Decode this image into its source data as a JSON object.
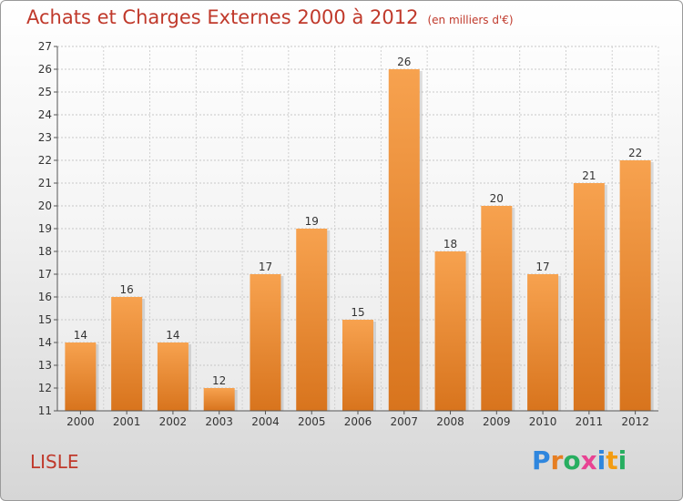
{
  "header": {
    "title": "Achats et Charges Externes 2000 à 2012",
    "subtitle": "(en milliers d'€)"
  },
  "footer": {
    "city": "LISLE",
    "logo_letters": [
      "P",
      "r",
      "o",
      "x",
      "i",
      "t",
      "i"
    ],
    "logo_colors": [
      "#2e86de",
      "#e67e22",
      "#27ae60",
      "#e84393",
      "#2e86de",
      "#f39c12",
      "#27ae60"
    ]
  },
  "colors": {
    "bar_light": "#f7a24f",
    "bar_dark": "#d8741d",
    "title": "#c0392b",
    "axis": "#555555"
  },
  "chart_data": {
    "type": "bar",
    "categories": [
      "2000",
      "2001",
      "2002",
      "2003",
      "2004",
      "2005",
      "2006",
      "2007",
      "2008",
      "2009",
      "2010",
      "2011",
      "2012"
    ],
    "values": [
      14,
      16,
      14,
      12,
      17,
      19,
      15,
      26,
      18,
      20,
      17,
      21,
      22
    ],
    "ylim": [
      11,
      27
    ],
    "yticks": [
      11,
      12,
      13,
      14,
      15,
      16,
      17,
      18,
      19,
      20,
      21,
      22,
      23,
      24,
      25,
      26,
      27
    ],
    "grid": true,
    "title": "Achats et Charges Externes 2000 à 2012",
    "xlabel": "",
    "ylabel": ""
  }
}
